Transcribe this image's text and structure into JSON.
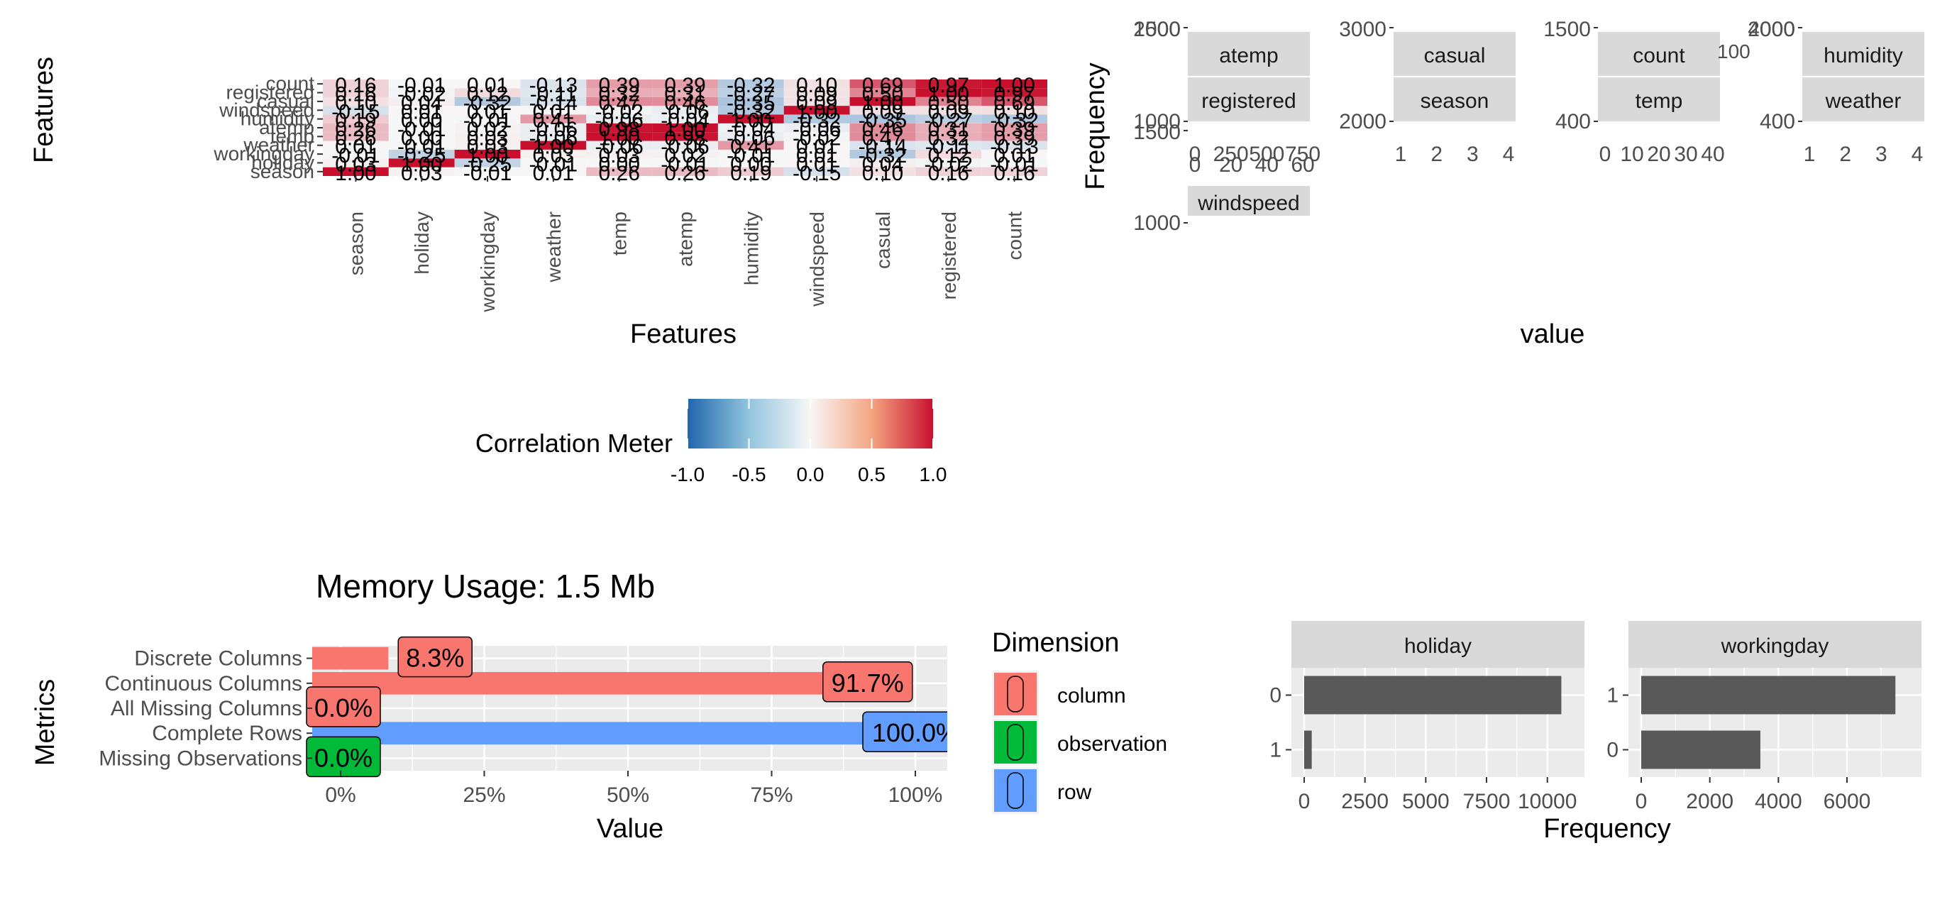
{
  "heatmap": {
    "ylabel": "Features",
    "xlabel": "Features",
    "variables": [
      "season",
      "holiday",
      "workingday",
      "weather",
      "temp",
      "atemp",
      "humidity",
      "windspeed",
      "casual",
      "registered",
      "count"
    ],
    "legend_title": "Correlation Meter",
    "legend_ticks": [
      "-1.0",
      "-0.5",
      "0.0",
      "0.5",
      "1.0"
    ],
    "colors": {
      "low": "#2166AC",
      "mid": "#F7F7F7",
      "high": "#C8102E"
    }
  },
  "histograms": {
    "ylabel": "Frequency",
    "xlabel": "value",
    "panels": [
      {
        "top": "atemp",
        "bottom": "registered",
        "xticks": [
          "0",
          "250",
          "500",
          "750"
        ],
        "yticks": [
          "1000",
          "1500",
          "2000"
        ]
      },
      {
        "top": "casual",
        "bottom": "season",
        "xticks": [
          "1",
          "2",
          "3",
          "4"
        ],
        "yticks": [
          "2000",
          "3000"
        ]
      },
      {
        "top": "count",
        "bottom": "temp",
        "xticks": [
          "0",
          "10",
          "20",
          "30",
          "40"
        ],
        "yticks": [
          "400",
          "1500"
        ]
      },
      {
        "top": "humidity",
        "bottom": "weather",
        "xticks": [
          "1",
          "2",
          "3",
          "4"
        ],
        "yticks": [
          "400",
          "2000",
          "4000"
        ]
      },
      {
        "top": "",
        "bottom": "windspeed",
        "xticks": [
          "0",
          "20",
          "40",
          "60"
        ],
        "yticks": [
          "1000",
          "1500"
        ]
      }
    ],
    "overflow_tick": "100"
  },
  "intro": {
    "title": "Memory Usage: 1.5 Mb",
    "xlabel": "Value",
    "ylabel": "Metrics",
    "xticks": [
      "0%",
      "25%",
      "50%",
      "75%",
      "100%"
    ],
    "legend_title": "Dimension",
    "legend": [
      {
        "name": "column",
        "color": "#F8766D"
      },
      {
        "name": "observation",
        "color": "#00BA38"
      },
      {
        "name": "row",
        "color": "#619CFF"
      }
    ]
  },
  "barpanels": {
    "xlabel": "Frequency",
    "panels": [
      {
        "strip": "holiday",
        "xticks": [
          "0",
          "2500",
          "5000",
          "7500",
          "10000"
        ]
      },
      {
        "strip": "workingday",
        "xticks": [
          "0",
          "2000",
          "4000",
          "6000"
        ]
      }
    ]
  },
  "chart_data": [
    {
      "type": "heatmap",
      "title": "",
      "xlabel": "Features",
      "ylabel": "Features",
      "variables": [
        "season",
        "holiday",
        "workingday",
        "weather",
        "temp",
        "atemp",
        "humidity",
        "windspeed",
        "casual",
        "registered",
        "count"
      ],
      "matrix": [
        [
          1.0,
          0.03,
          -0.01,
          0.01,
          0.26,
          0.26,
          0.19,
          -0.15,
          0.1,
          0.16,
          0.16
        ],
        [
          0.03,
          1.0,
          -0.25,
          -0.01,
          0.0,
          -0.01,
          0.0,
          0.01,
          0.04,
          -0.02,
          -0.01
        ],
        [
          -0.01,
          -0.25,
          1.0,
          0.03,
          0.03,
          0.02,
          -0.01,
          0.01,
          -0.32,
          0.12,
          0.01
        ],
        [
          0.01,
          -0.01,
          0.03,
          1.0,
          -0.06,
          -0.06,
          0.41,
          0.01,
          -0.14,
          -0.11,
          -0.13
        ],
        [
          0.26,
          0.0,
          0.03,
          -0.06,
          1.0,
          0.98,
          -0.06,
          -0.02,
          0.47,
          0.32,
          0.39
        ],
        [
          0.26,
          -0.01,
          0.02,
          -0.06,
          0.98,
          1.0,
          -0.04,
          -0.06,
          0.46,
          0.31,
          0.39
        ],
        [
          0.19,
          0.0,
          -0.01,
          0.41,
          -0.06,
          -0.04,
          1.0,
          -0.32,
          -0.35,
          -0.27,
          -0.32
        ],
        [
          -0.15,
          0.01,
          0.01,
          0.01,
          -0.02,
          -0.06,
          -0.32,
          1.0,
          0.09,
          0.09,
          0.1
        ],
        [
          0.1,
          0.04,
          -0.32,
          -0.14,
          0.47,
          0.46,
          -0.35,
          0.09,
          1.0,
          0.5,
          0.69
        ],
        [
          0.16,
          -0.02,
          0.12,
          -0.11,
          0.32,
          0.31,
          -0.27,
          0.09,
          0.5,
          1.0,
          0.97
        ],
        [
          0.16,
          -0.01,
          0.01,
          -0.13,
          0.39,
          0.39,
          -0.32,
          0.1,
          0.69,
          0.97,
          1.0
        ]
      ],
      "legend_title": "Correlation Meter",
      "legend_range": [
        -1.0,
        1.0
      ]
    },
    {
      "type": "bar",
      "title": "Memory Usage: 1.5 Mb",
      "xlabel": "Value",
      "ylabel": "Metrics",
      "categories": [
        "Discrete Columns",
        "Continuous Columns",
        "All Missing Columns",
        "Complete Rows",
        "Missing Observations"
      ],
      "values": [
        8.3,
        91.7,
        0.0,
        100.0,
        0.0
      ],
      "labels": [
        "8.3%",
        "91.7%",
        "0.0%",
        "100.0%",
        "0.0%"
      ],
      "dimension": [
        "column",
        "column",
        "column",
        "row",
        "observation"
      ],
      "xlim": [
        0,
        100
      ],
      "legend_title": "Dimension"
    },
    {
      "type": "bar",
      "title": "",
      "xlabel": "Frequency",
      "facet": "holiday",
      "categories": [
        "0",
        "1"
      ],
      "values": [
        10575,
        311
      ],
      "xlim": [
        0,
        11000
      ]
    },
    {
      "type": "bar",
      "title": "",
      "xlabel": "Frequency",
      "facet": "workingday",
      "categories": [
        "1",
        "0"
      ],
      "values": [
        7412,
        3474
      ],
      "xlim": [
        0,
        7800
      ]
    }
  ]
}
